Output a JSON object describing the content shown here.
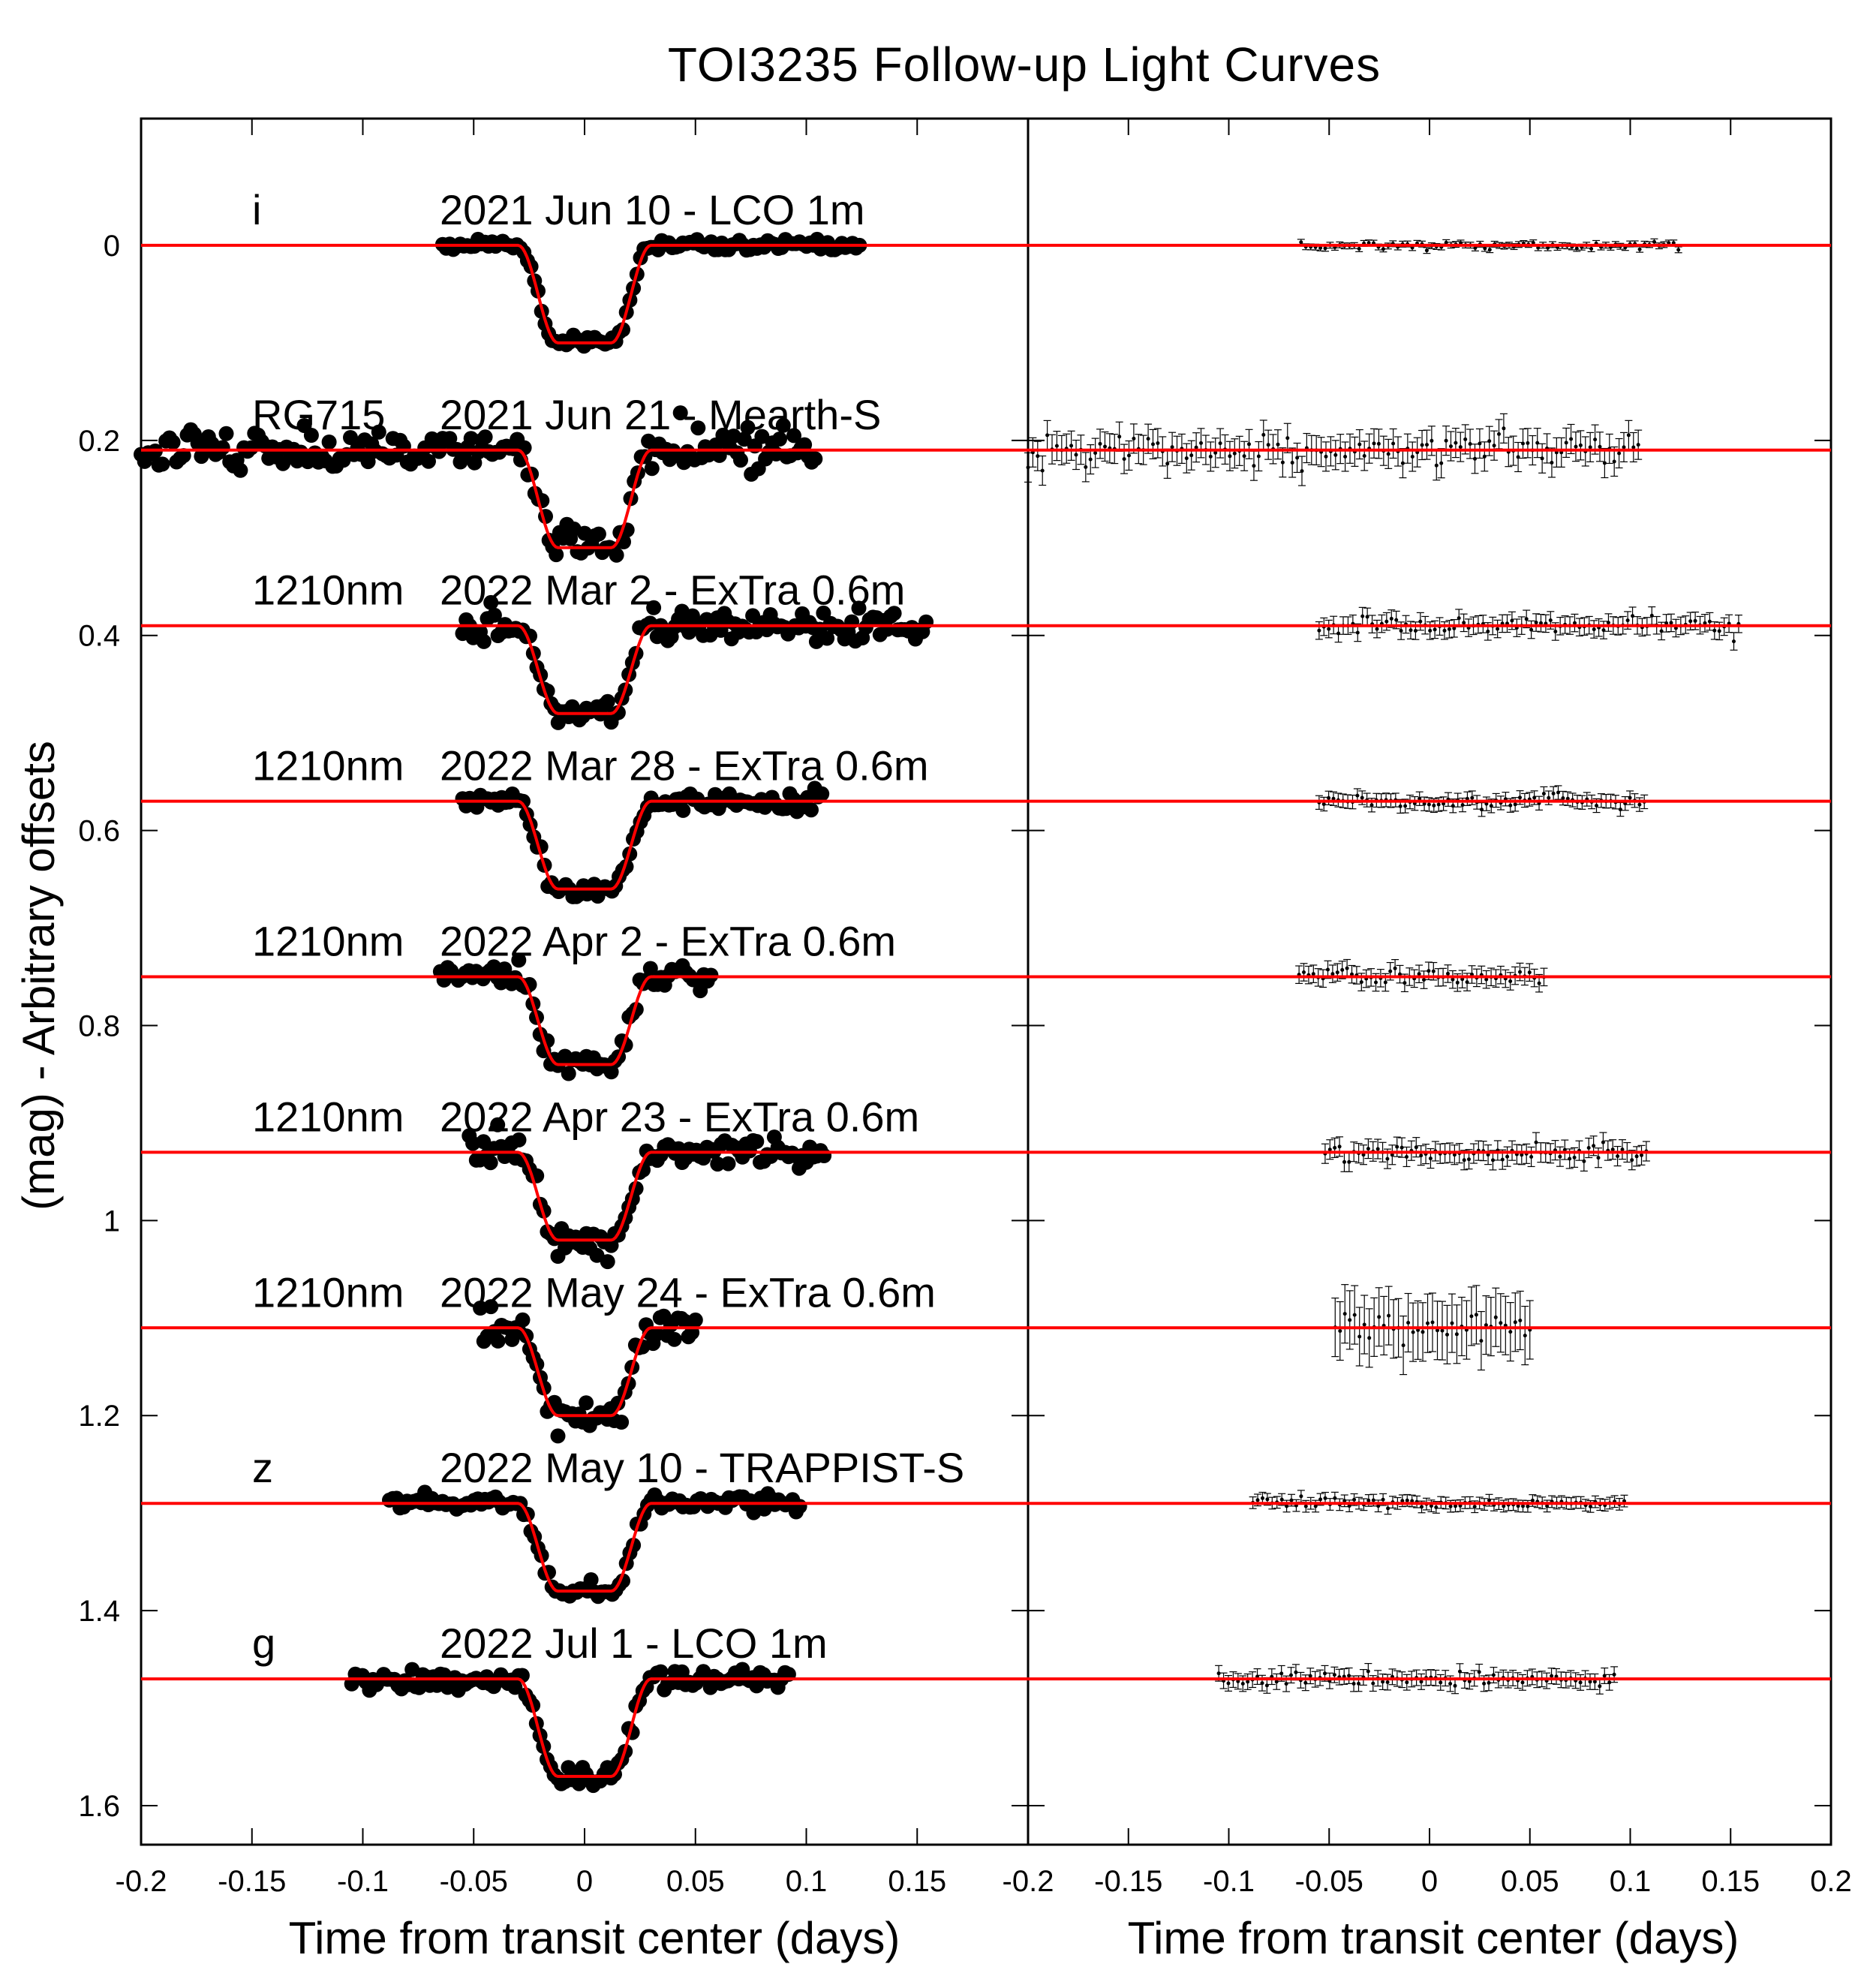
{
  "chart_data": {
    "type": "scatter",
    "title": "TOI3235 Follow-up Light Curves",
    "ylabel": "(mag) - Arbitrary offsets",
    "ylim": [
      1.64,
      -0.13
    ],
    "y_ticks": [
      "0",
      "0.2",
      "0.4",
      "0.6",
      "0.8",
      "1",
      "1.2",
      "1.4",
      "1.6"
    ],
    "y_tick_values": [
      0,
      0.2,
      0.4,
      0.6,
      0.8,
      1.0,
      1.2,
      1.4,
      1.6
    ],
    "panels": [
      {
        "role": "light curves with transit model",
        "xlabel": "Time from transit center (days)",
        "xlim": [
          -0.2,
          0.2
        ],
        "x_ticks": [
          "-0.2",
          "-0.15",
          "-0.1",
          "-0.05",
          "0",
          "0.05",
          "0.1",
          "0.15"
        ],
        "x_tick_values": [
          -0.2,
          -0.15,
          -0.1,
          -0.05,
          0,
          0.05,
          0.1,
          0.15
        ]
      },
      {
        "role": "residuals",
        "xlabel": "Time from transit center (days)",
        "xlim": [
          -0.2,
          0.2
        ],
        "x_ticks": [
          "-0.2",
          "-0.15",
          "-0.1",
          "-0.05",
          "0",
          "0.05",
          "0.1",
          "0.15",
          "0.2"
        ],
        "x_tick_values": [
          -0.2,
          -0.15,
          -0.1,
          -0.05,
          0,
          0.05,
          0.1,
          0.15,
          0.2
        ]
      }
    ],
    "series": [
      {
        "band": "i",
        "label": "2021 Jun 10 - LCO 1m",
        "offset": 0.0,
        "depth": 0.1,
        "x_range": [
          -0.064,
          0.124
        ],
        "scatter": 0.003,
        "residual_err": 0.003
      },
      {
        "band": "RG715",
        "label": "2021 Jun 21 - Mearth-S",
        "offset": 0.21,
        "depth": 0.1,
        "x_range": [
          -0.2,
          0.104
        ],
        "scatter": 0.011,
        "residual_err": 0.015
      },
      {
        "band": "1210nm",
        "label": "2022 Mar 2 - ExTra 0.6m",
        "offset": 0.39,
        "depth": 0.09,
        "x_range": [
          -0.055,
          0.154
        ],
        "scatter": 0.007,
        "residual_err": 0.009
      },
      {
        "band": "1210nm",
        "label": "2022 Mar 28 - ExTra 0.6m",
        "offset": 0.57,
        "depth": 0.09,
        "x_range": [
          -0.055,
          0.107
        ],
        "scatter": 0.005,
        "residual_err": 0.007
      },
      {
        "band": "1210nm",
        "label": "2022 Apr 2 - ExTra 0.6m",
        "offset": 0.75,
        "depth": 0.09,
        "x_range": [
          -0.065,
          0.057
        ],
        "scatter": 0.006,
        "residual_err": 0.009
      },
      {
        "band": "1210nm",
        "label": "2022 Apr 23 - ExTra 0.6m",
        "offset": 0.93,
        "depth": 0.09,
        "x_range": [
          -0.052,
          0.108
        ],
        "scatter": 0.007,
        "residual_err": 0.01
      },
      {
        "band": "1210nm",
        "label": "2022 May 24 - ExTra 0.6m",
        "offset": 1.11,
        "depth": 0.09,
        "x_range": [
          -0.047,
          0.05
        ],
        "scatter": 0.012,
        "residual_err": 0.03
      },
      {
        "band": "z",
        "label": "2022 May 10 - TRAPPIST-S",
        "offset": 1.29,
        "depth": 0.09,
        "x_range": [
          -0.088,
          0.097
        ],
        "scatter": 0.004,
        "residual_err": 0.006
      },
      {
        "band": "g",
        "label": "2022 Jul 1 - LCO 1m",
        "offset": 1.47,
        "depth": 0.1,
        "x_range": [
          -0.105,
          0.092
        ],
        "scatter": 0.005,
        "residual_err": 0.008
      }
    ],
    "transit_model": {
      "color": "#ff0000",
      "t14_days": 0.06,
      "t23_days": 0.024
    },
    "grid": false,
    "legend": "none",
    "marker_color": "#000000"
  }
}
